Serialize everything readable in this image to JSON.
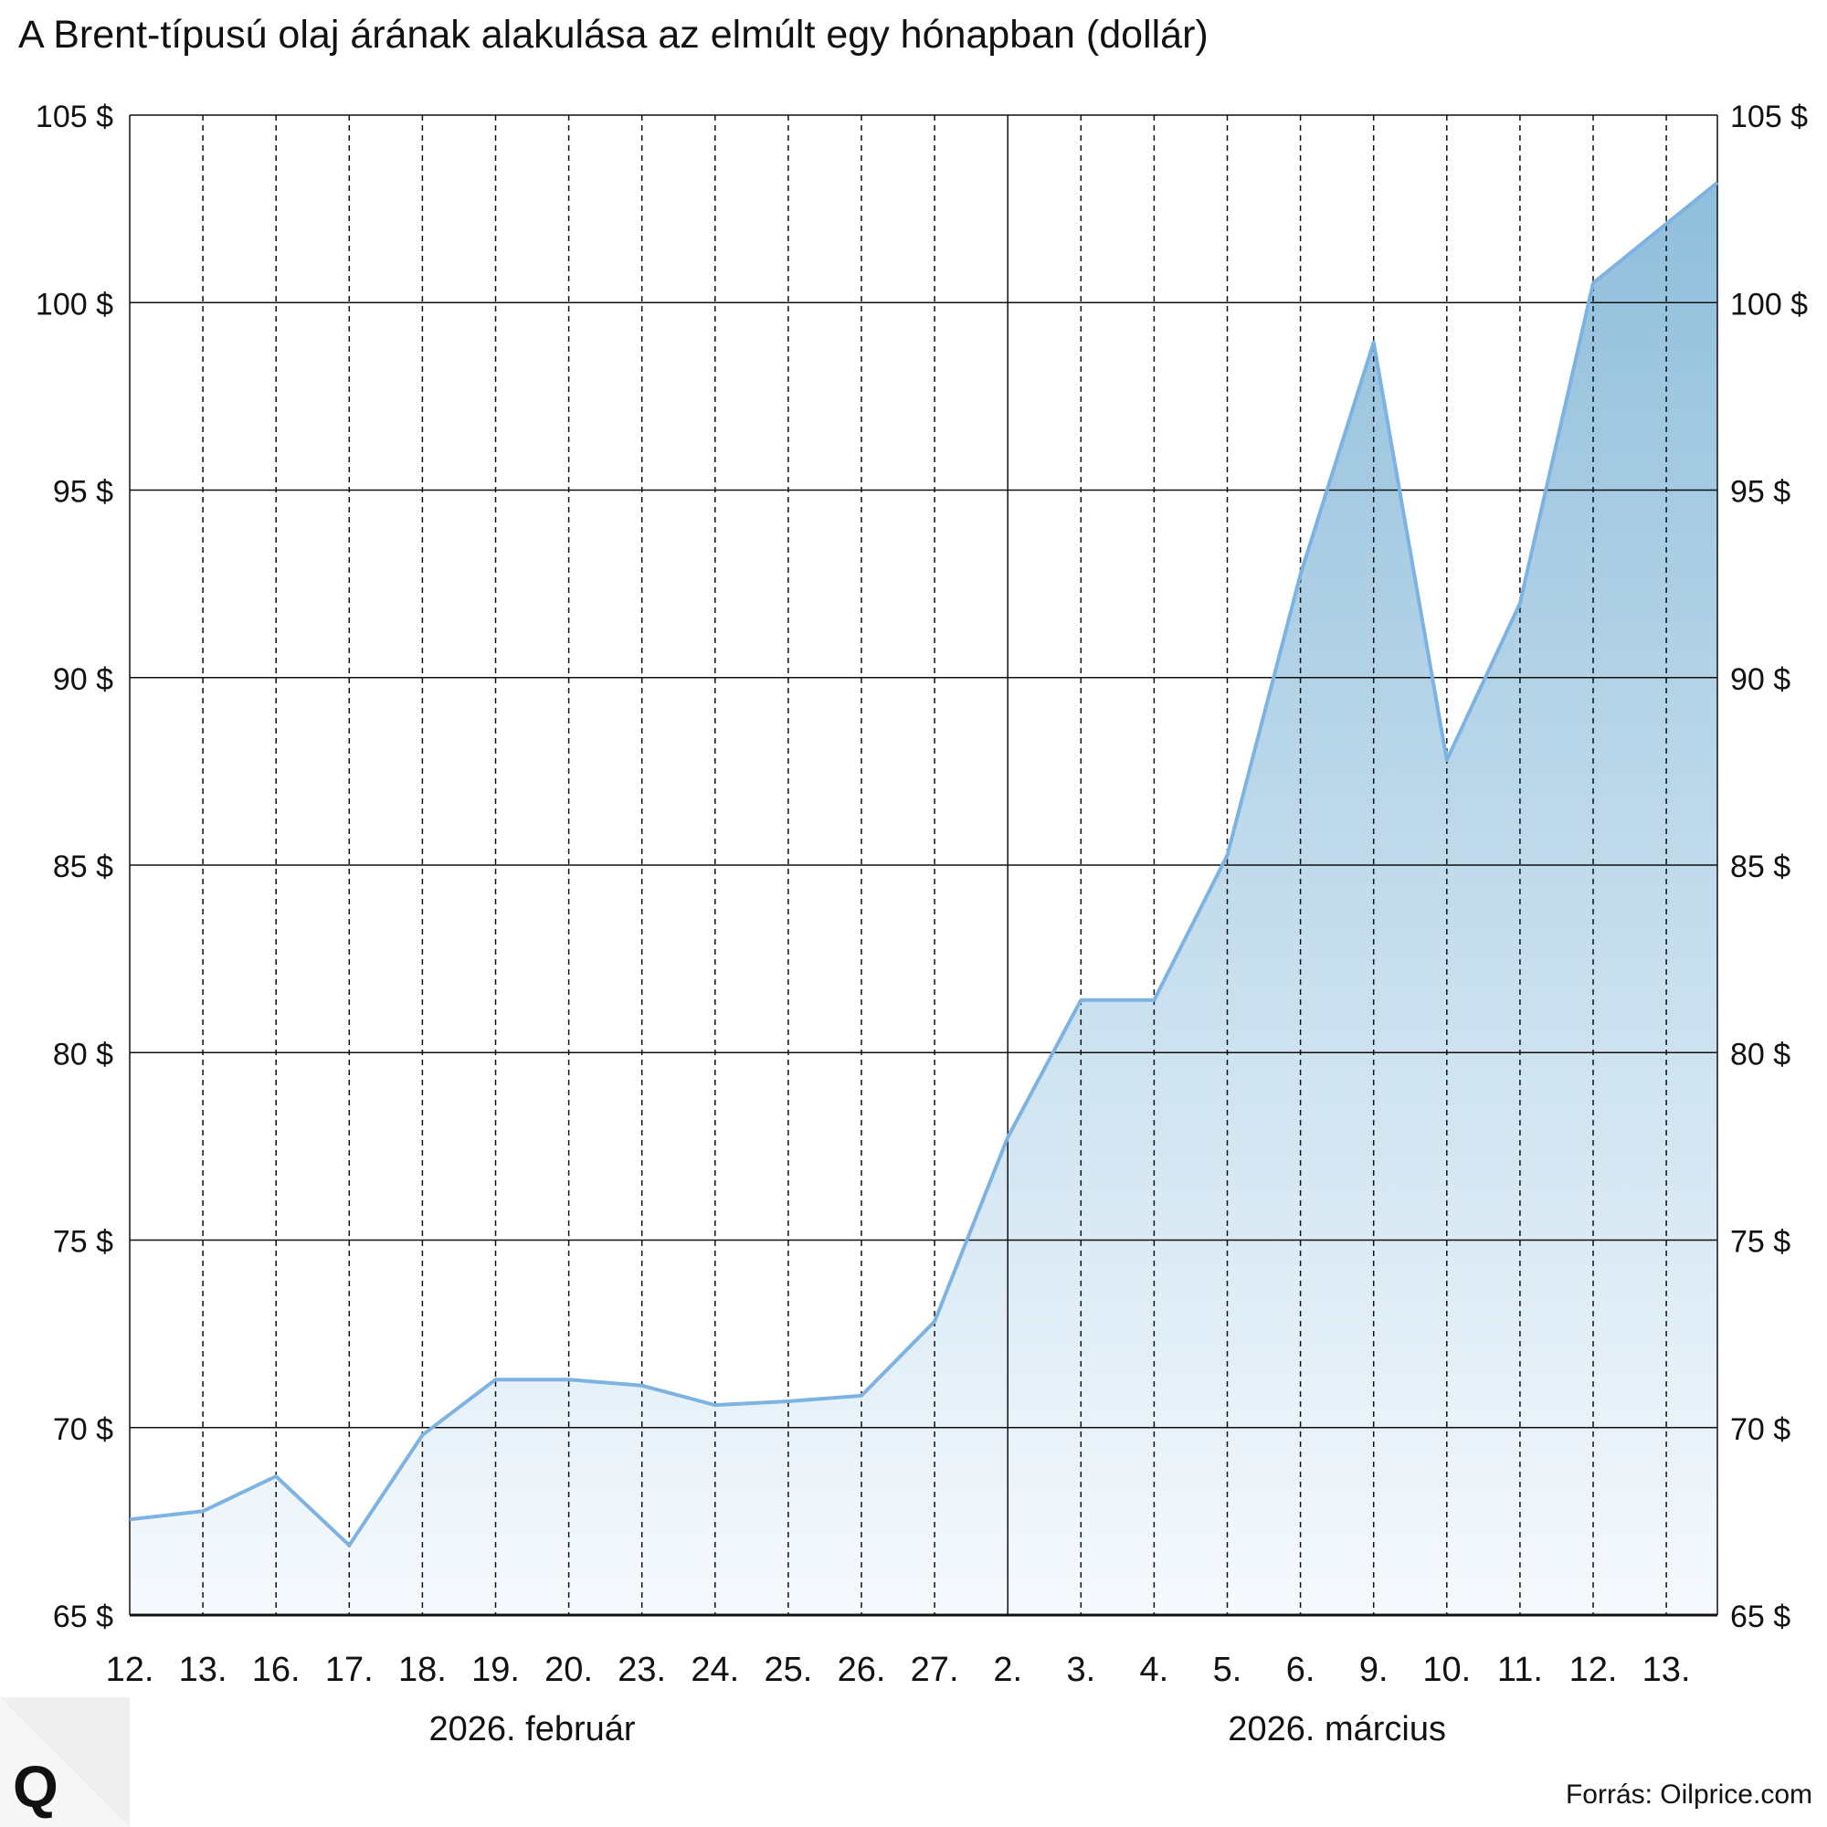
{
  "chart_data": {
    "type": "area",
    "title": "A Brent-típusú olaj árának alakulása az elmúlt egy hónapban (dollár)",
    "categories": [
      "12.",
      "13.",
      "16.",
      "17.",
      "18.",
      "19.",
      "20.",
      "23.",
      "24.",
      "25.",
      "26.",
      "27.",
      "2.",
      "3.",
      "4.",
      "5.",
      "6.",
      "9.",
      "10.",
      "11.",
      "12.",
      "13."
    ],
    "values": [
      67.55,
      67.77,
      68.7,
      66.86,
      69.8,
      71.28,
      71.28,
      71.12,
      70.6,
      70.7,
      70.85,
      72.83,
      77.74,
      81.4,
      81.4,
      85.26,
      92.75,
      98.94,
      87.8,
      91.98,
      100.52,
      102.1
    ],
    "last_value_at_right_edge": 103.2,
    "ylim": [
      65,
      105
    ],
    "yticks": [
      65,
      70,
      75,
      80,
      85,
      90,
      95,
      100,
      105
    ],
    "ytick_suffix": " $",
    "ytick_labels": [
      "65 $",
      "70 $",
      "75 $",
      "80 $",
      "85 $",
      "90 $",
      "95 $",
      "100 $",
      "105 $"
    ],
    "month_groups": [
      {
        "label": "2026. február",
        "start_index": 0,
        "end_index": 11
      },
      {
        "label": "2026. március",
        "start_index": 12,
        "end_index": 21
      }
    ],
    "grid": true,
    "source": "Forrás: Oilprice.com",
    "colors": {
      "line": "#7db3e2",
      "fill_top": "#8fbedb",
      "fill_bottom": "#f6fafe",
      "grid": "#111111"
    }
  },
  "logo_text": "Q"
}
